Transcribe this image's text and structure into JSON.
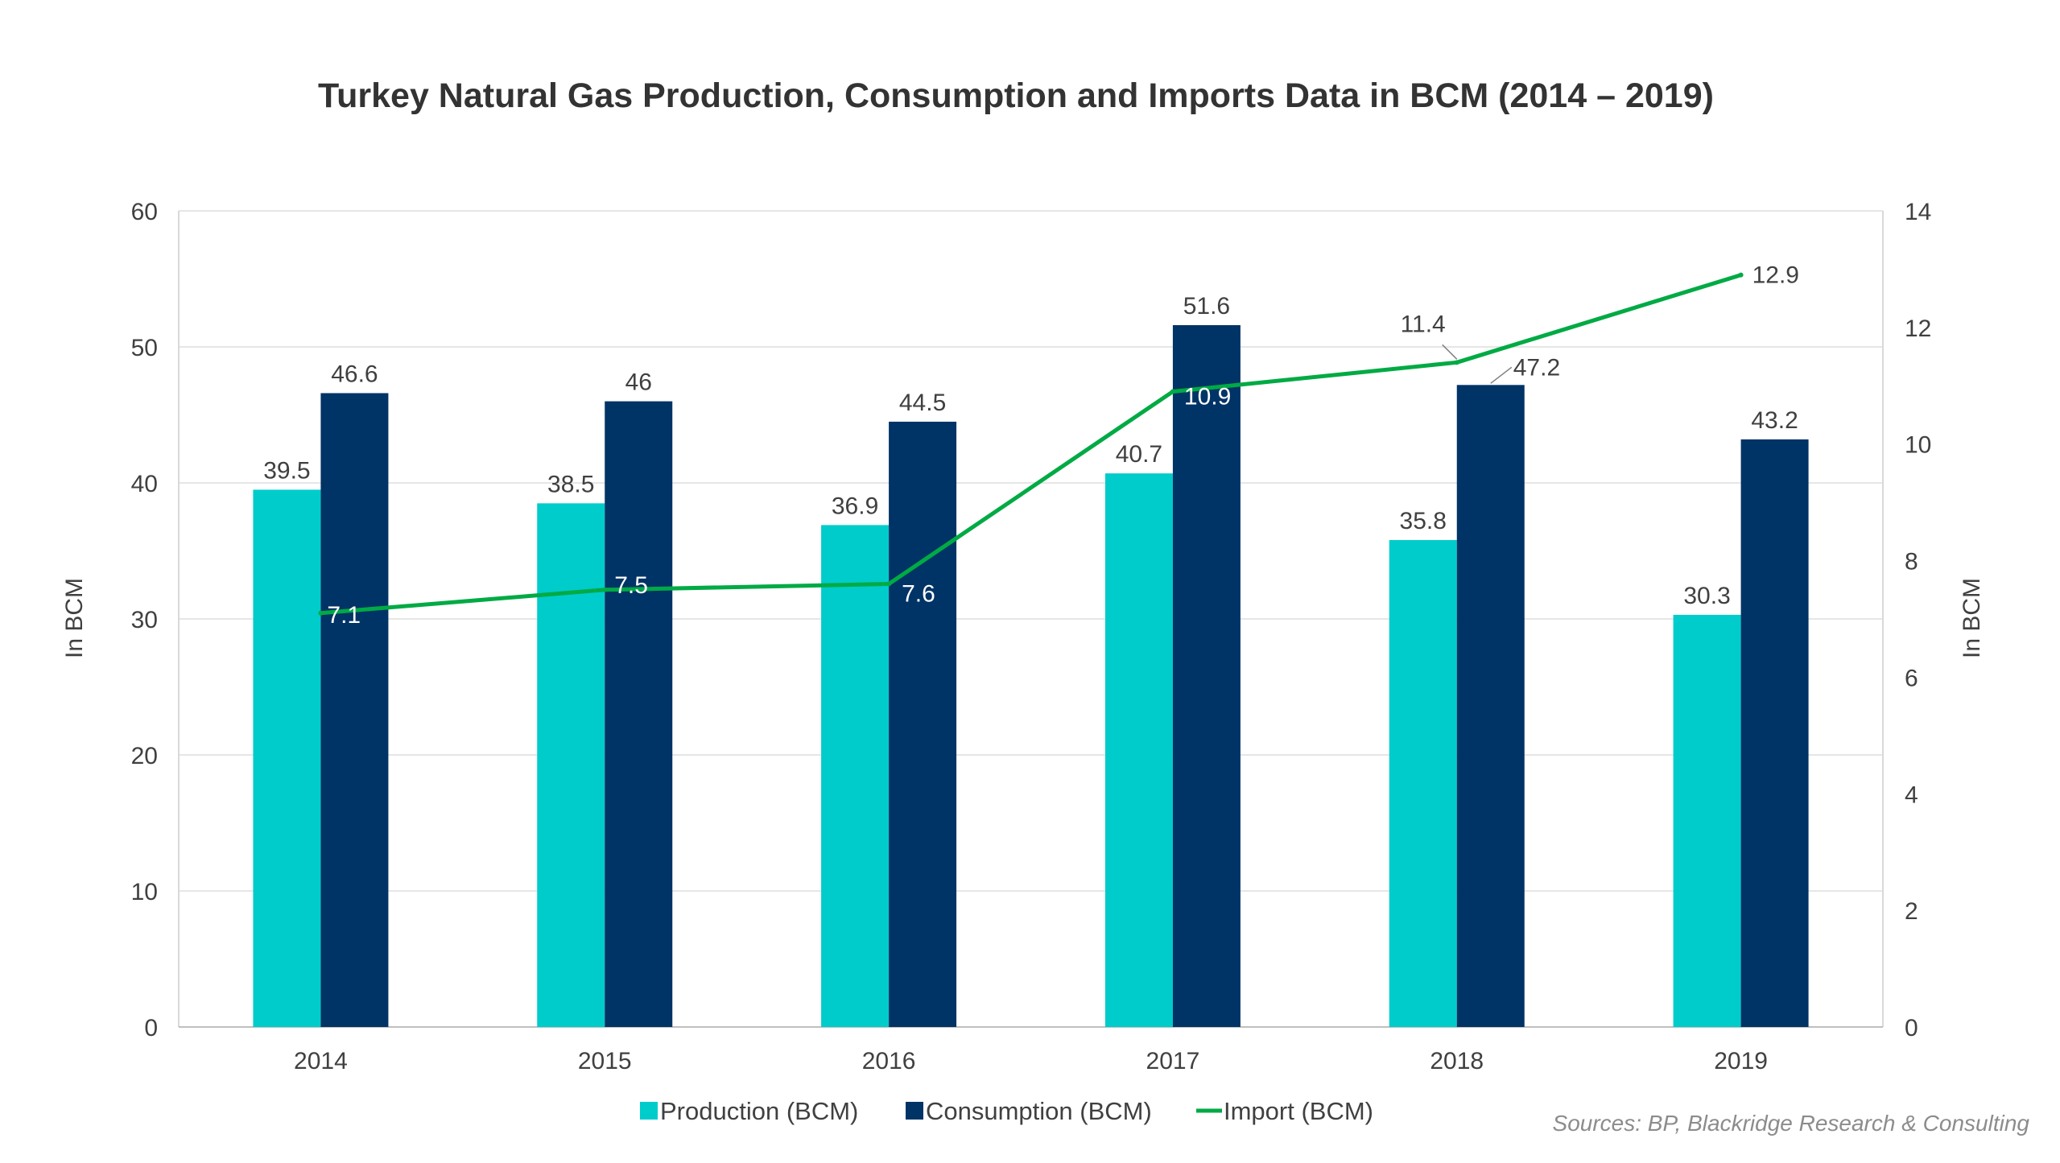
{
  "chart_data": {
    "type": "bar",
    "title": "Turkey Natural Gas Production, Consumption and Imports Data in BCM  (2014 – 2019)",
    "categories": [
      "2014",
      "2015",
      "2016",
      "2017",
      "2018",
      "2019"
    ],
    "series": [
      {
        "name": "Production (BCM)",
        "type": "bar",
        "axis": "left",
        "color": "#00CCCC",
        "values": [
          39.5,
          38.5,
          36.9,
          40.7,
          35.8,
          30.3
        ],
        "labels": [
          "39.5",
          "38.5",
          "36.9",
          "40.7",
          "35.8",
          "30.3"
        ]
      },
      {
        "name": "Consumption (BCM)",
        "type": "bar",
        "axis": "left",
        "color": "#003366",
        "values": [
          46.6,
          46,
          44.5,
          51.6,
          47.2,
          43.2
        ],
        "labels": [
          "46.6",
          "46",
          "44.5",
          "51.6",
          "47.2",
          "43.2"
        ]
      },
      {
        "name": "Import (BCM)",
        "type": "line",
        "axis": "right",
        "color": "#00AA44",
        "values": [
          7.1,
          7.5,
          7.6,
          10.9,
          11.4,
          12.9
        ],
        "labels": [
          "7.1",
          "7.5",
          "7.6",
          "10.9",
          "11.4",
          "12.9"
        ]
      }
    ],
    "ylabel": "In BCM",
    "ylim": [
      0,
      60
    ],
    "yticks": [
      "0",
      "10",
      "20",
      "30",
      "40",
      "50",
      "60"
    ],
    "y2label": "In BCM",
    "y2lim": [
      0,
      14
    ],
    "y2ticks": [
      "0",
      "2",
      "4",
      "6",
      "8",
      "10",
      "12",
      "14"
    ],
    "grid": true,
    "legend_position": "bottom",
    "source_note": "Sources: BP, Blackridge Research & Consulting"
  }
}
